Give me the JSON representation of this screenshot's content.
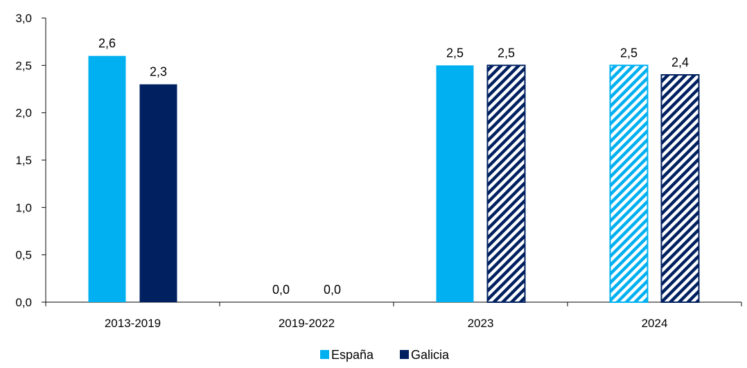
{
  "chart_data": {
    "type": "bar",
    "title": "",
    "xlabel": "",
    "ylabel": "",
    "categories": [
      "2013-2019",
      "2019-2022",
      "2023",
      "2024"
    ],
    "ylim": [
      0,
      3
    ],
    "yticks": [
      "0,0",
      "0,5",
      "1,0",
      "1,5",
      "2,0",
      "2,5",
      "3,0"
    ],
    "ytick_values": [
      0,
      0.5,
      1.0,
      1.5,
      2.0,
      2.5,
      3.0
    ],
    "grid": false,
    "legend_position": "bottom",
    "series": [
      {
        "name": "España",
        "color": "#00B0F0",
        "values": [
          2.6,
          0.0,
          2.5,
          2.5
        ],
        "labels": [
          "2,6",
          "0,0",
          "2,5",
          "2,5"
        ],
        "hatched": [
          false,
          false,
          false,
          true
        ]
      },
      {
        "name": "Galicia",
        "color": "#002060",
        "values": [
          2.3,
          0.0,
          2.5,
          2.4
        ],
        "labels": [
          "2,3",
          "0,0",
          "2,5",
          "2,4"
        ],
        "hatched": [
          false,
          false,
          true,
          true
        ]
      }
    ]
  }
}
